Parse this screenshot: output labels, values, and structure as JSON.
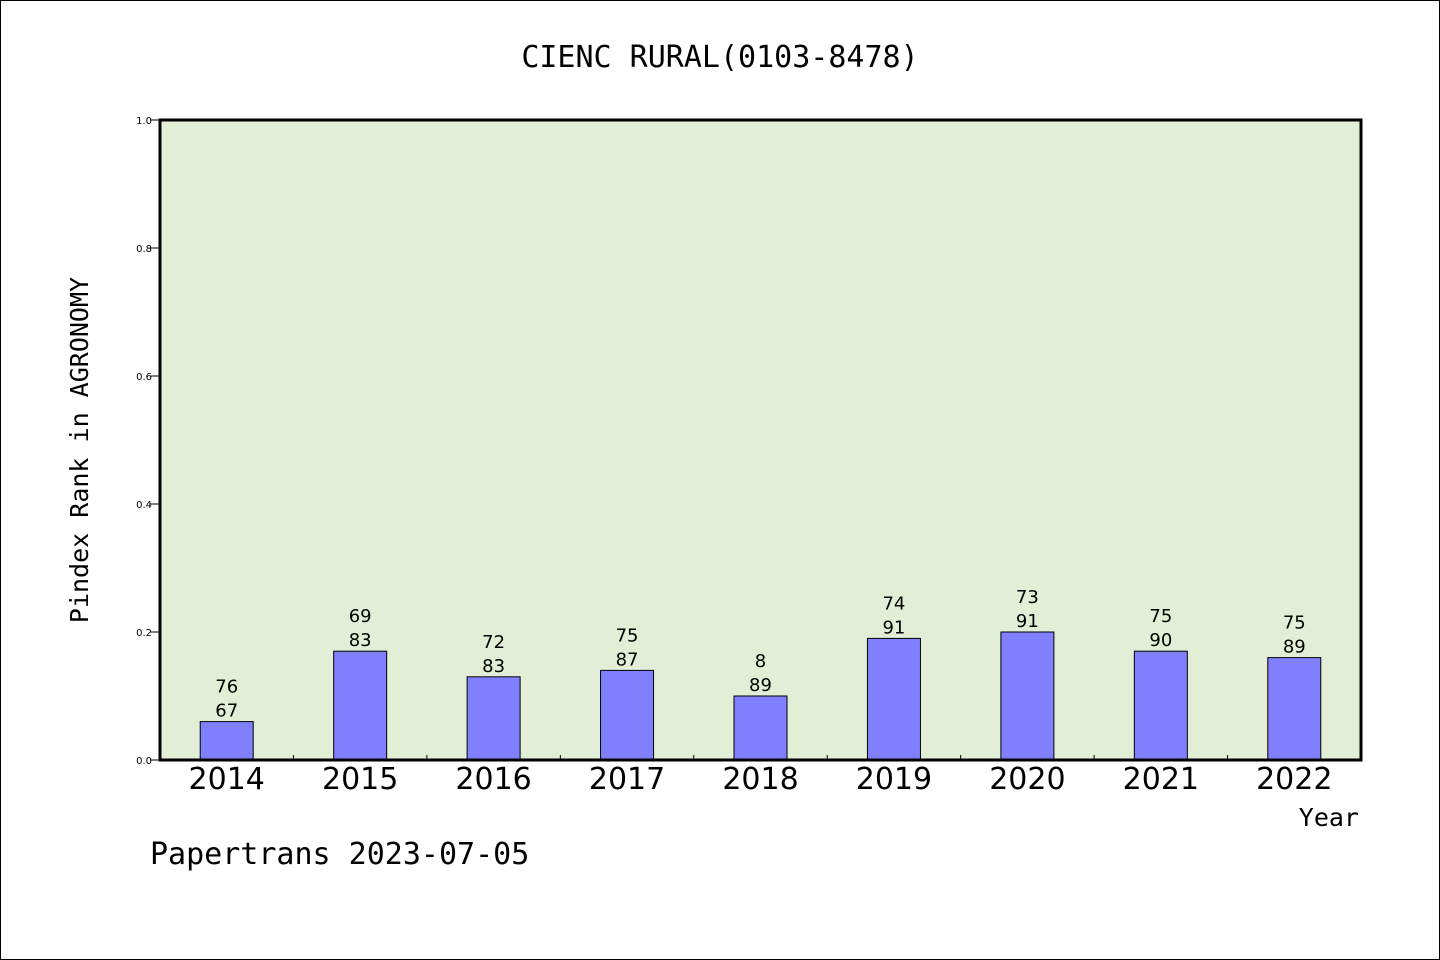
{
  "chart_data": {
    "type": "bar",
    "title": "CIENC RURAL(0103-8478)",
    "xlabel": "Year",
    "ylabel": "Pindex Rank in AGRONOMY",
    "ylim": [
      0.0,
      1.0
    ],
    "yticks": [
      "0.0",
      "0.2",
      "0.4",
      "0.6",
      "0.8",
      "1.0"
    ],
    "categories": [
      "2014",
      "2015",
      "2016",
      "2017",
      "2018",
      "2019",
      "2020",
      "2021",
      "2022"
    ],
    "values": [
      0.06,
      0.17,
      0.13,
      0.14,
      0.1,
      0.19,
      0.2,
      0.17,
      0.16
    ],
    "labels_top": [
      "76",
      "69",
      "72",
      "75",
      "8",
      "74",
      "73",
      "75",
      "75"
    ],
    "labels_bottom": [
      "67",
      "83",
      "83",
      "87",
      "89",
      "91",
      "91",
      "90",
      "89"
    ],
    "grid": false,
    "colors": {
      "plot_bg": "#e2efd6",
      "bar": "#8080ff"
    }
  },
  "footer": {
    "text": "Papertrans 2023-07-05"
  }
}
